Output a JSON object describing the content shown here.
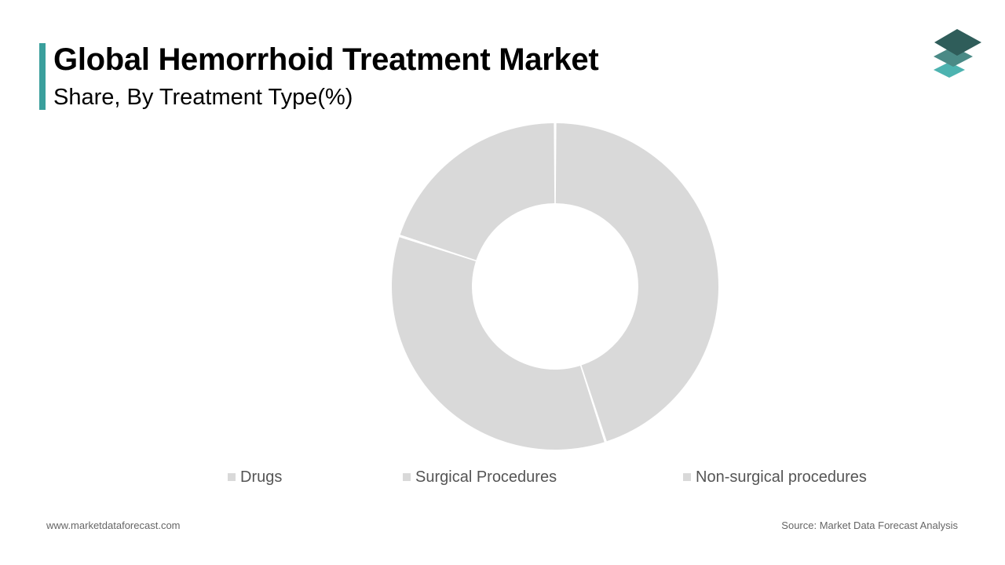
{
  "header": {
    "title": "Global Hemorrhoid Treatment Market",
    "subtitle": "Share, By Treatment Type(%)"
  },
  "colors": {
    "accent": "#3a9f9c",
    "segment": "#d9d9d9",
    "logo_dark": "#2f5d5a",
    "logo_mid": "#4a8a86",
    "logo_light": "#4db3b0"
  },
  "logo": {
    "icon": "stacked-layers-icon"
  },
  "chart_data": {
    "type": "pie",
    "style": "donut",
    "title": "",
    "categories": [
      "Drugs",
      "Surgical Procedures",
      "Non-surgical procedures"
    ],
    "values": [
      45,
      35,
      20
    ],
    "legend": "bottom"
  },
  "footer": {
    "website": "www.marketdataforecast.com",
    "source": "Source: Market Data Forecast Analysis"
  }
}
